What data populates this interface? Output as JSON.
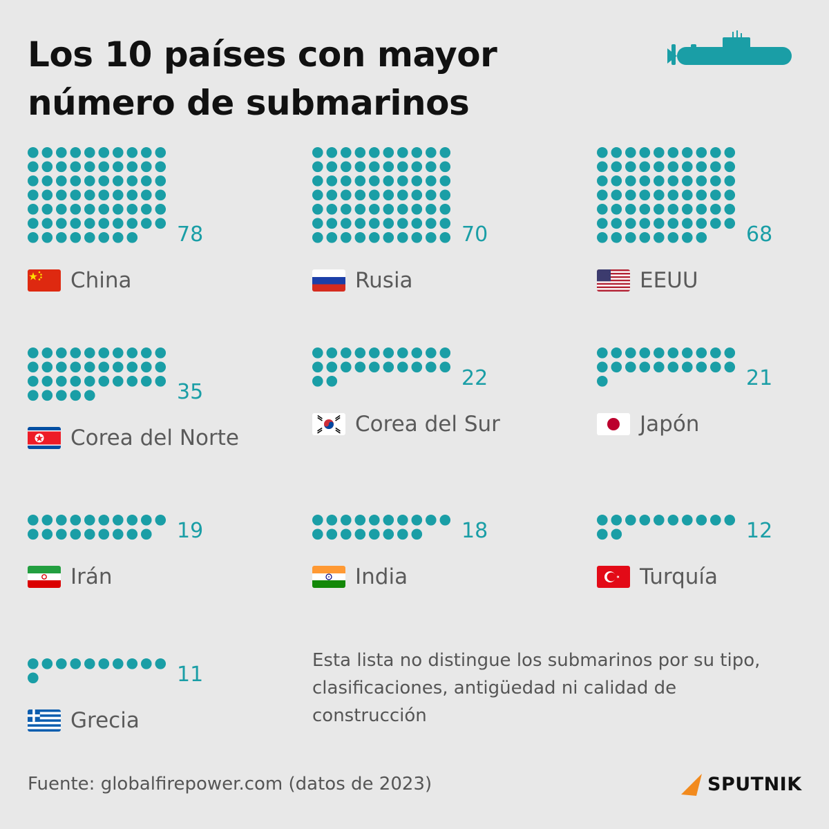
{
  "title": "Los 10 países con mayor número de submarinos",
  "icon": "submarine-icon",
  "colors": {
    "dot": "#1a9ea6",
    "background": "#e8e8e8",
    "title": "#111111",
    "text": "#5a5a5a"
  },
  "chart_data": {
    "type": "pictogram",
    "title": "Los 10 países con mayor número de submarinos",
    "unit": "submarinos",
    "dots_per_row": 10,
    "categories": [
      "China",
      "Rusia",
      "EEUU",
      "Corea del Norte",
      "Corea del Sur",
      "Japón",
      "Irán",
      "India",
      "Turquía",
      "Grecia"
    ],
    "values": [
      78,
      70,
      68,
      35,
      22,
      21,
      19,
      18,
      12,
      11
    ],
    "flags": [
      "flag-china",
      "flag-russia",
      "flag-usa",
      "flag-north-korea",
      "flag-south-korea",
      "flag-japan",
      "flag-iran",
      "flag-india",
      "flag-turkey",
      "flag-greece"
    ]
  },
  "items": [
    {
      "country": "China",
      "value": "78",
      "flag": "flag-china"
    },
    {
      "country": "Rusia",
      "value": "70",
      "flag": "flag-russia"
    },
    {
      "country": "EEUU",
      "value": "68",
      "flag": "flag-usa"
    },
    {
      "country": "Corea del Norte",
      "value": "35",
      "flag": "flag-north-korea"
    },
    {
      "country": "Corea del Sur",
      "value": "22",
      "flag": "flag-south-korea"
    },
    {
      "country": "Japón",
      "value": "21",
      "flag": "flag-japan"
    },
    {
      "country": "Irán",
      "value": "19",
      "flag": "flag-iran"
    },
    {
      "country": "India",
      "value": "18",
      "flag": "flag-india"
    },
    {
      "country": "Turquía",
      "value": "12",
      "flag": "flag-turkey"
    },
    {
      "country": "Grecia",
      "value": "11",
      "flag": "flag-greece"
    }
  ],
  "note": "Esta lista no distingue los submarinos por su tipo, clasificaciones, antigüedad ni calidad de construcción",
  "source": "Fuente: globalfirepower.com (datos de 2023)",
  "logo": {
    "text": "SPUTNIK",
    "icon": "sputnik-logo-icon"
  }
}
